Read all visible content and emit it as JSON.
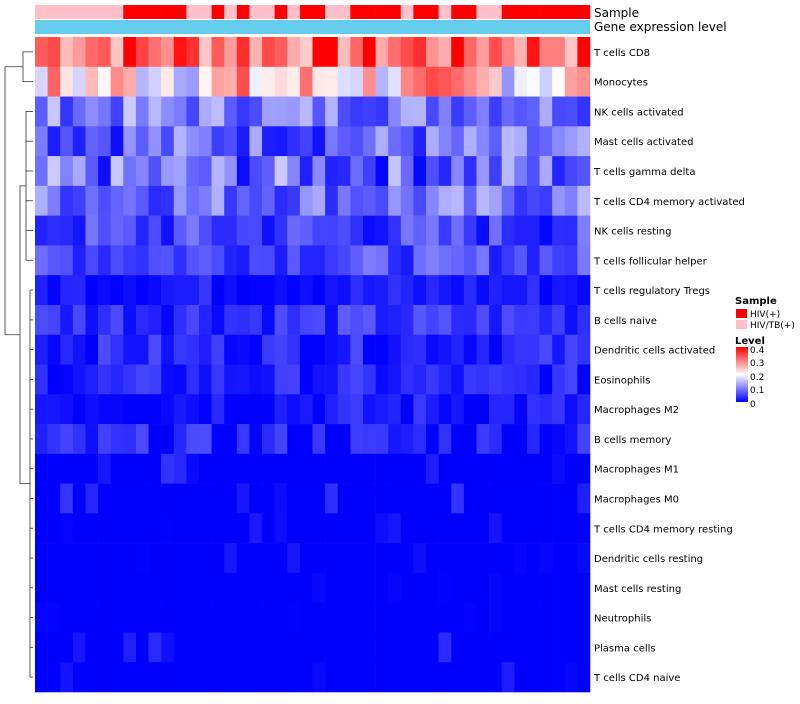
{
  "chart_data": {
    "type": "heatmap",
    "title": "",
    "annotation_labels": [
      "Sample",
      "Gene expression level"
    ],
    "rows": [
      "T cells CD8",
      "Monocytes",
      "NK cells activated",
      "Mast cells activated",
      "T cells gamma delta",
      "T cells CD4 memory activated",
      "NK cells resting",
      "T cells follicular helper",
      "T cells regulatory  Tregs",
      "B cells naive",
      "Dendritic cells activated",
      "Eosinophils",
      "Macrophages M2",
      "B cells memory",
      "Macrophages M1",
      "Macrophages M0",
      "T cells CD4 memory resting",
      "Dendritic cells resting",
      "Mast cells resting",
      "Neutrophils",
      "Plasma cells",
      "T cells CD4 naive"
    ],
    "n_columns": 44,
    "sample_groups": [
      "HIV/TB(+)",
      "HIV/TB(+)",
      "HIV/TB(+)",
      "HIV/TB(+)",
      "HIV/TB(+)",
      "HIV/TB(+)",
      "HIV/TB(+)",
      "HIV(+)",
      "HIV(+)",
      "HIV(+)",
      "HIV(+)",
      "HIV(+)",
      "HIV/TB(+)",
      "HIV/TB(+)",
      "HIV(+)",
      "HIV/TB(+)",
      "HIV(+)",
      "HIV/TB(+)",
      "HIV/TB(+)",
      "HIV(+)",
      "HIV/TB(+)",
      "HIV(+)",
      "HIV(+)",
      "HIV/TB(+)",
      "HIV/TB(+)",
      "HIV(+)",
      "HIV(+)",
      "HIV(+)",
      "HIV(+)",
      "HIV/TB(+)",
      "HIV(+)",
      "HIV(+)",
      "HIV/TB(+)",
      "HIV(+)",
      "HIV(+)",
      "HIV/TB(+)",
      "HIV/TB(+)",
      "HIV(+)",
      "HIV(+)",
      "HIV(+)",
      "HIV(+)",
      "HIV(+)",
      "HIV(+)",
      "HIV(+)"
    ],
    "sample_colors": {
      "HIV(+)": "#ff0000",
      "HIV/TB(+)": "#ffc0cb"
    },
    "expression_bar_color": "#66ccee",
    "row_means": [
      0.33,
      0.23,
      0.1,
      0.08,
      0.08,
      0.09,
      0.05,
      0.06,
      0.02,
      0.04,
      0.03,
      0.025,
      0.02,
      0.02,
      0.012,
      0.012,
      0.005,
      0.004,
      0.002,
      0.001,
      0.008,
      0.003
    ],
    "row_spreads": [
      0.1,
      0.12,
      0.06,
      0.07,
      0.08,
      0.06,
      0.05,
      0.04,
      0.025,
      0.035,
      0.03,
      0.03,
      0.03,
      0.04,
      0.03,
      0.03,
      0.015,
      0.015,
      0.005,
      0.004,
      0.03,
      0.02
    ],
    "color_scale": {
      "low": "#0000ff",
      "mid": "#ffffff",
      "high": "#ff0000",
      "min": 0,
      "max": 0.4,
      "mid_value": 0.2
    },
    "legend": {
      "sample_title": "Sample",
      "sample_entries": [
        "HIV(+)",
        "HIV/TB(+)"
      ],
      "level_title": "Level",
      "level_ticks": [
        "0.4",
        "0.3",
        "0.2",
        "0.1",
        "0"
      ]
    },
    "dendrogram": "row clustering (left)"
  }
}
